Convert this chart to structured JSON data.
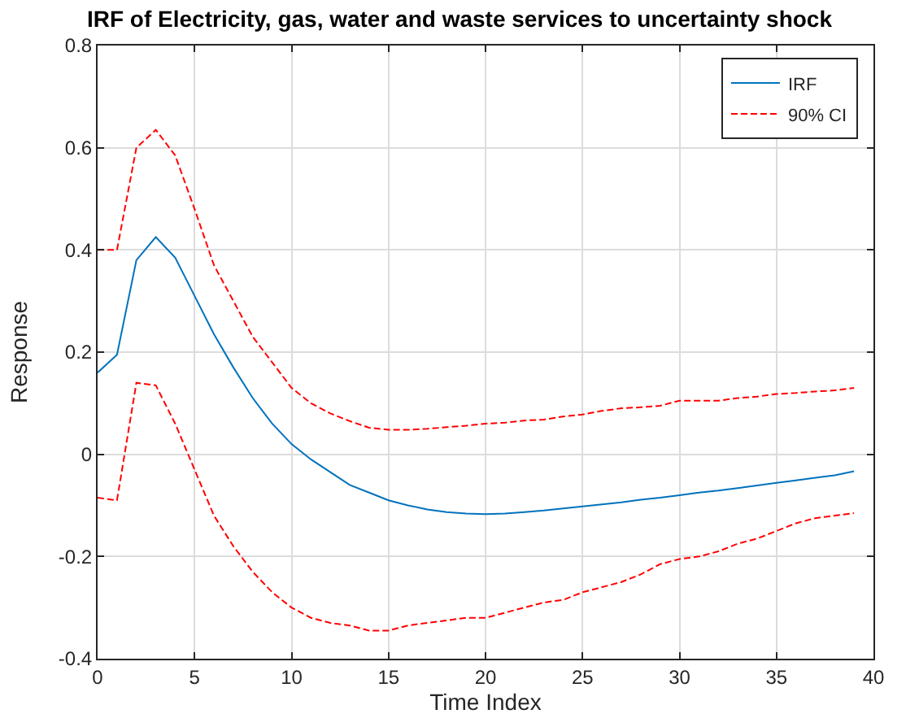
{
  "chart_data": {
    "type": "line",
    "title": "IRF of Electricity, gas, water and waste services to uncertainty shock",
    "xlabel": "Time Index",
    "ylabel": "Response",
    "x": [
      0,
      1,
      2,
      3,
      4,
      5,
      6,
      7,
      8,
      9,
      10,
      11,
      12,
      13,
      14,
      15,
      16,
      17,
      18,
      19,
      20,
      21,
      22,
      23,
      24,
      25,
      26,
      27,
      28,
      29,
      30,
      31,
      32,
      33,
      34,
      35,
      36,
      37,
      38,
      39
    ],
    "xlim": [
      0,
      40
    ],
    "xticks": [
      0,
      5,
      10,
      15,
      20,
      25,
      30,
      35,
      40
    ],
    "ylim": [
      -0.4,
      0.8
    ],
    "yticks": [
      -0.4,
      -0.2,
      0,
      0.2,
      0.4,
      0.6,
      0.8
    ],
    "grid": true,
    "legend": "top right",
    "marker": "none",
    "series": [
      {
        "name": "IRF",
        "color": "#0072bd",
        "line_style": "solid",
        "values": [
          0.16,
          0.195,
          0.38,
          0.425,
          0.385,
          0.31,
          0.235,
          0.17,
          0.11,
          0.06,
          0.02,
          -0.01,
          -0.035,
          -0.06,
          -0.075,
          -0.09,
          -0.1,
          -0.108,
          -0.113,
          -0.116,
          -0.117,
          -0.116,
          -0.113,
          -0.11,
          -0.106,
          -0.102,
          -0.098,
          -0.094,
          -0.089,
          -0.085,
          -0.08,
          -0.075,
          -0.071,
          -0.066,
          -0.061,
          -0.056,
          -0.051,
          -0.046,
          -0.041,
          -0.033
        ]
      },
      {
        "name": "90% CI",
        "color": "#ff0000",
        "line_style": "dashed",
        "values": [
          0.4,
          0.4,
          0.6,
          0.635,
          0.585,
          0.48,
          0.37,
          0.3,
          0.23,
          0.18,
          0.13,
          0.1,
          0.08,
          0.065,
          0.052,
          0.048,
          0.048,
          0.05,
          0.053,
          0.056,
          0.06,
          0.062,
          0.066,
          0.068,
          0.074,
          0.078,
          0.085,
          0.09,
          0.092,
          0.095,
          0.105,
          0.105,
          0.105,
          0.11,
          0.113,
          0.118,
          0.12,
          0.123,
          0.125,
          0.13
        ]
      },
      {
        "color": "#ff0000",
        "line_style": "dashed",
        "values": [
          -0.085,
          -0.09,
          0.14,
          0.135,
          0.06,
          -0.03,
          -0.12,
          -0.18,
          -0.23,
          -0.27,
          -0.3,
          -0.32,
          -0.33,
          -0.335,
          -0.345,
          -0.345,
          -0.335,
          -0.33,
          -0.325,
          -0.32,
          -0.32,
          -0.31,
          -0.3,
          -0.29,
          -0.285,
          -0.27,
          -0.26,
          -0.25,
          -0.235,
          -0.215,
          -0.205,
          -0.2,
          -0.19,
          -0.175,
          -0.165,
          -0.15,
          -0.135,
          -0.125,
          -0.12,
          -0.115
        ]
      }
    ]
  }
}
